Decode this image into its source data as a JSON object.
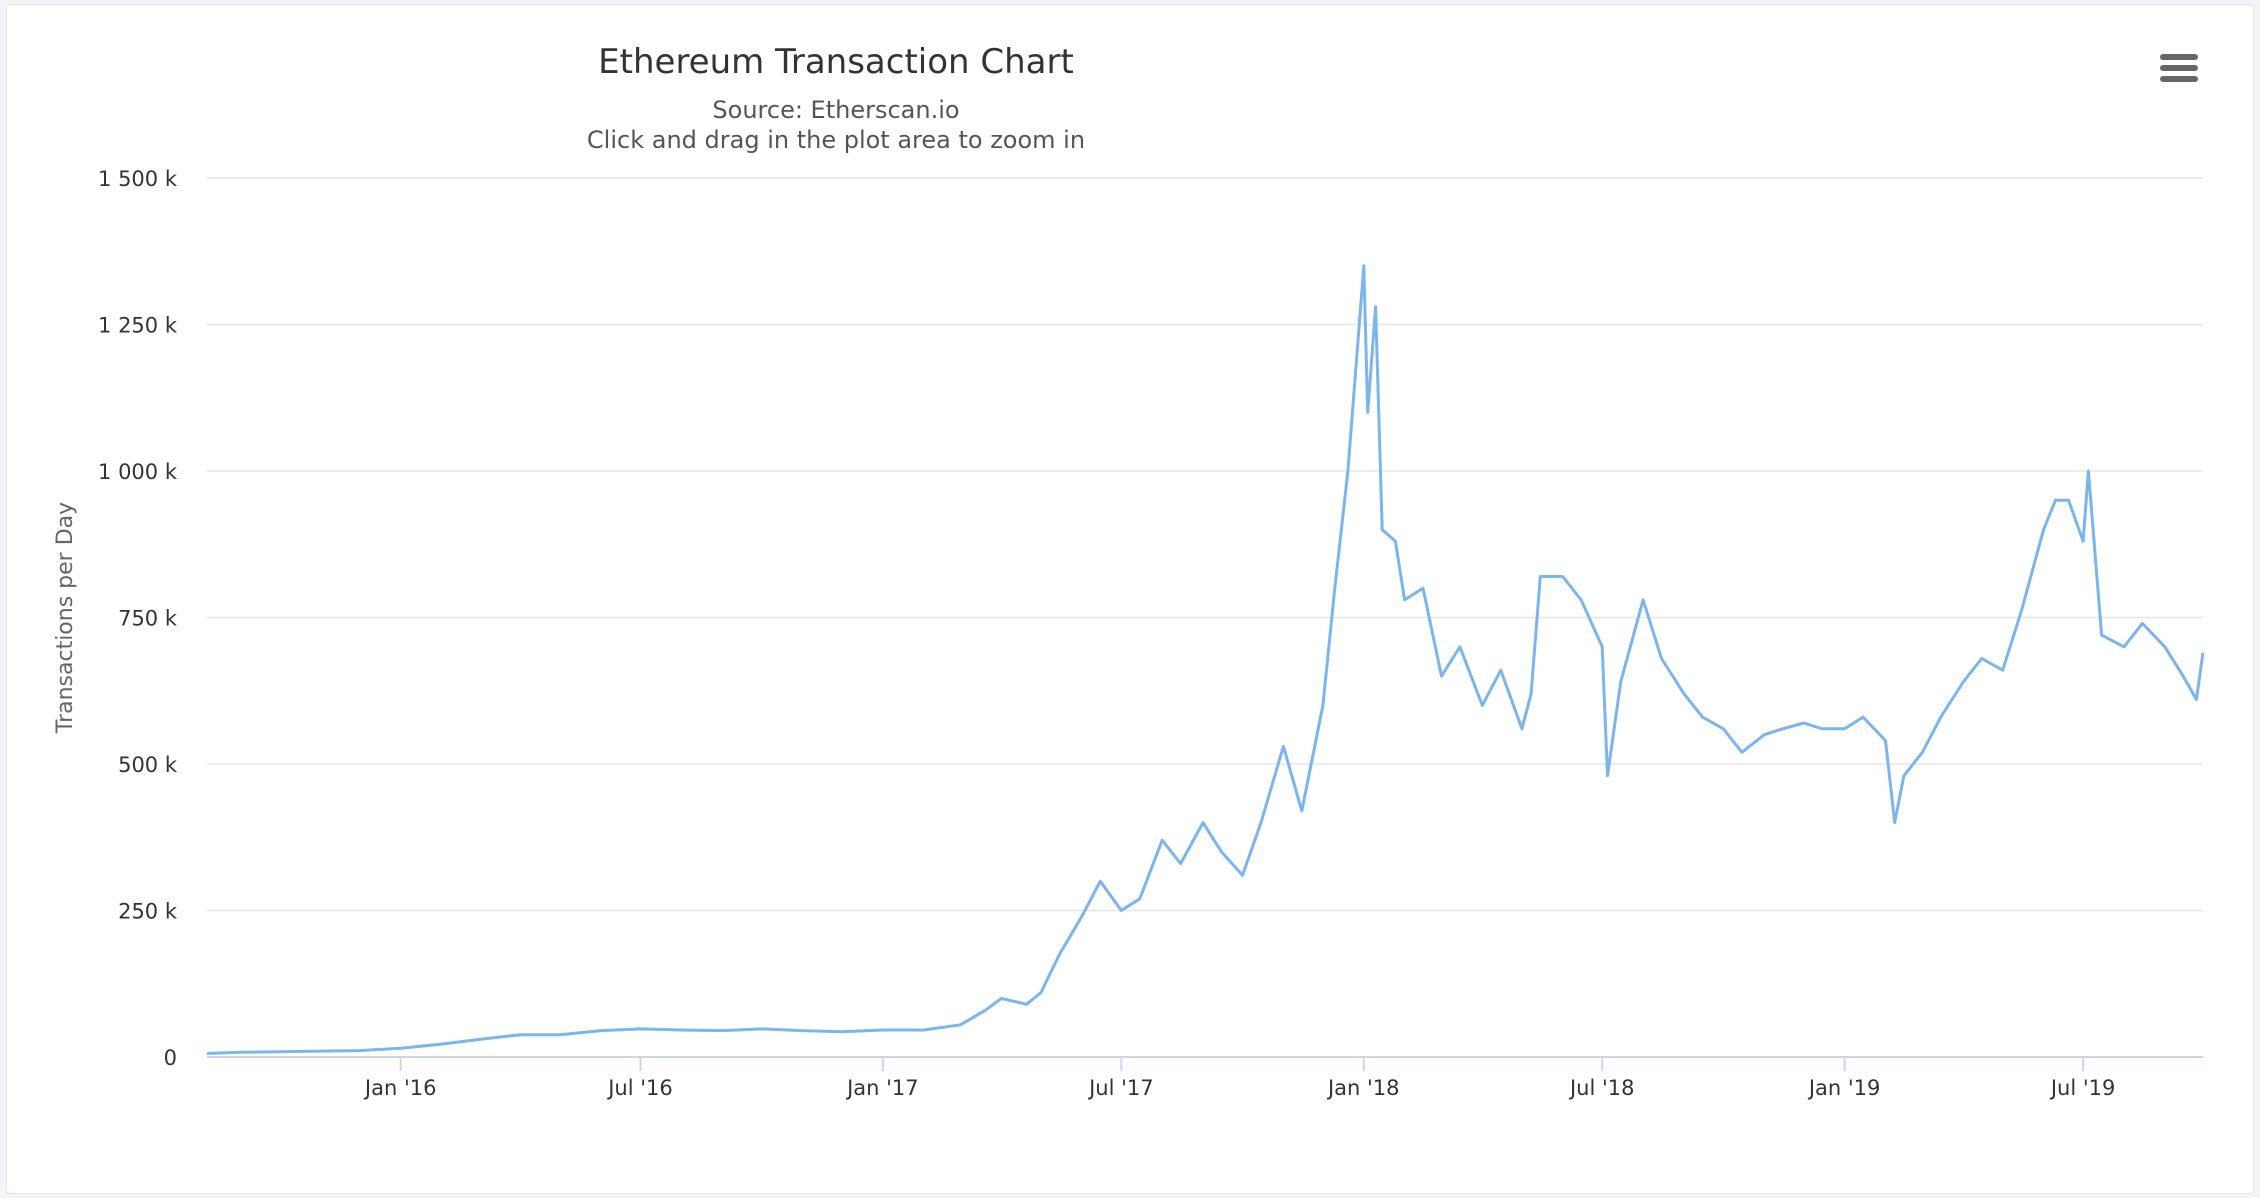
{
  "chart": {
    "title": "Ethereum Transaction Chart",
    "subtitle_source": "Source: Etherscan.io",
    "subtitle_hint": "Click and drag in the plot area to zoom in",
    "menu_icon": "hamburger-menu-icon"
  },
  "colors": {
    "series": "#7cb5ec",
    "grid": "#e6e6e6",
    "text": "#333333",
    "axis_label": "#666666"
  },
  "chart_data": {
    "type": "line",
    "title": "Ethereum Transaction Chart",
    "subtitle": "Source: Etherscan.io",
    "xlabel": "",
    "ylabel": "Transactions per Day",
    "ylim": [
      0,
      1500000
    ],
    "xlim": [
      "2015-08-07",
      "2019-09-30"
    ],
    "grid": true,
    "legend": "none",
    "y_ticks": [
      {
        "value": 0,
        "label": "0"
      },
      {
        "value": 250000,
        "label": "250 k"
      },
      {
        "value": 500000,
        "label": "500 k"
      },
      {
        "value": 750000,
        "label": "750 k"
      },
      {
        "value": 1000000,
        "label": "1 000 k"
      },
      {
        "value": 1250000,
        "label": "1 250 k"
      },
      {
        "value": 1500000,
        "label": "1 500 k"
      }
    ],
    "x_ticks": [
      {
        "value": "2016-01-01",
        "label": "Jan '16"
      },
      {
        "value": "2016-07-01",
        "label": "Jul '16"
      },
      {
        "value": "2017-01-01",
        "label": "Jan '17"
      },
      {
        "value": "2017-07-01",
        "label": "Jul '17"
      },
      {
        "value": "2018-01-01",
        "label": "Jan '18"
      },
      {
        "value": "2018-07-01",
        "label": "Jul '18"
      },
      {
        "value": "2019-01-01",
        "label": "Jan '19"
      },
      {
        "value": "2019-07-01",
        "label": "Jul '19"
      }
    ],
    "series": [
      {
        "x": [
          "2015-08-07",
          "2015-09-01",
          "2015-10-01",
          "2015-11-01",
          "2015-12-01",
          "2016-01-01",
          "2016-02-01",
          "2016-03-01",
          "2016-04-01",
          "2016-05-01",
          "2016-06-01",
          "2016-07-01",
          "2016-08-01",
          "2016-09-01",
          "2016-10-01",
          "2016-11-01",
          "2016-12-01",
          "2017-01-01",
          "2017-02-01",
          "2017-03-01",
          "2017-03-20",
          "2017-04-01",
          "2017-04-20",
          "2017-05-01",
          "2017-05-15",
          "2017-06-01",
          "2017-06-15",
          "2017-07-01",
          "2017-07-15",
          "2017-08-01",
          "2017-08-15",
          "2017-09-01",
          "2017-09-15",
          "2017-10-01",
          "2017-10-15",
          "2017-11-01",
          "2017-11-15",
          "2017-12-01",
          "2017-12-10",
          "2017-12-20",
          "2018-01-01",
          "2018-01-04",
          "2018-01-10",
          "2018-01-15",
          "2018-01-25",
          "2018-02-01",
          "2018-02-15",
          "2018-03-01",
          "2018-03-15",
          "2018-04-01",
          "2018-04-15",
          "2018-05-01",
          "2018-05-08",
          "2018-05-15",
          "2018-06-01",
          "2018-06-15",
          "2018-07-01",
          "2018-07-05",
          "2018-07-15",
          "2018-08-01",
          "2018-08-15",
          "2018-09-01",
          "2018-09-15",
          "2018-10-01",
          "2018-10-15",
          "2018-11-01",
          "2018-11-15",
          "2018-12-01",
          "2018-12-15",
          "2019-01-01",
          "2019-01-15",
          "2019-02-01",
          "2019-02-08",
          "2019-02-15",
          "2019-03-01",
          "2019-03-15",
          "2019-04-01",
          "2019-04-15",
          "2019-05-01",
          "2019-05-15",
          "2019-06-01",
          "2019-06-10",
          "2019-06-20",
          "2019-07-01",
          "2019-07-05",
          "2019-07-15",
          "2019-08-01",
          "2019-08-15",
          "2019-09-01",
          "2019-09-15",
          "2019-09-25",
          "2019-09-30"
        ],
        "y": [
          6000,
          8000,
          9000,
          10000,
          11000,
          15000,
          22000,
          30000,
          38000,
          38000,
          45000,
          48000,
          46000,
          45000,
          48000,
          45000,
          43000,
          46000,
          46000,
          55000,
          80000,
          100000,
          90000,
          110000,
          175000,
          240000,
          300000,
          250000,
          270000,
          370000,
          330000,
          400000,
          350000,
          310000,
          400000,
          530000,
          420000,
          600000,
          800000,
          1000000,
          1350000,
          1100000,
          1280000,
          900000,
          880000,
          780000,
          800000,
          650000,
          700000,
          600000,
          660000,
          560000,
          620000,
          820000,
          820000,
          780000,
          700000,
          480000,
          640000,
          780000,
          680000,
          620000,
          580000,
          560000,
          520000,
          550000,
          560000,
          570000,
          560000,
          560000,
          580000,
          540000,
          400000,
          480000,
          520000,
          580000,
          640000,
          680000,
          660000,
          760000,
          900000,
          950000,
          950000,
          880000,
          1000000,
          720000,
          700000,
          740000,
          700000,
          650000,
          610000,
          690000
        ]
      }
    ]
  }
}
